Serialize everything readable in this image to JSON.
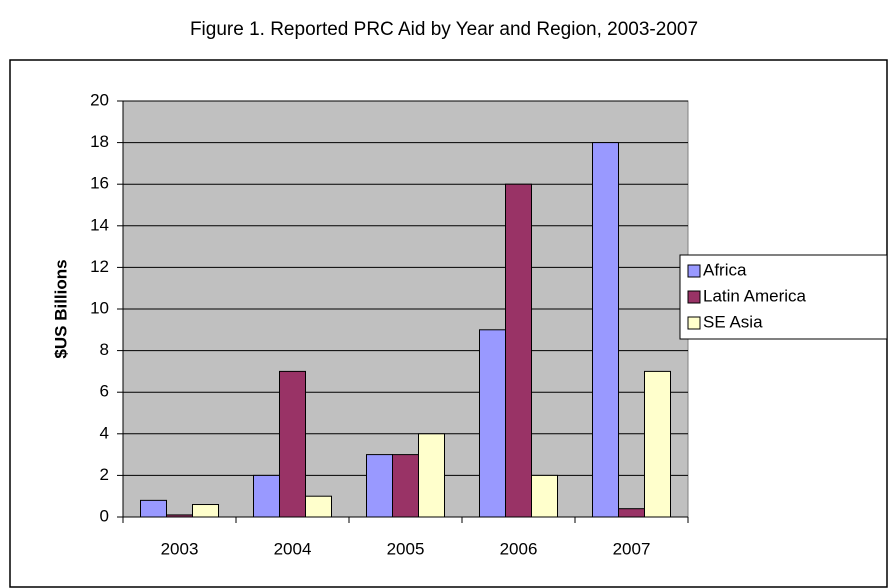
{
  "chart_data": {
    "type": "bar",
    "title": "Figure 1. Reported PRC Aid by Year and Region, 2003-2007",
    "y_label": "$US Billions",
    "categories": [
      "2003",
      "2004",
      "2005",
      "2006",
      "2007"
    ],
    "series": [
      {
        "name": "Africa",
        "color": "#9999ff",
        "values": [
          0.8,
          2,
          3,
          9,
          18
        ]
      },
      {
        "name": "Latin America",
        "color": "#993366",
        "values": [
          0.1,
          7,
          3,
          16,
          0.4
        ]
      },
      {
        "name": "SE Asia",
        "color": "#ffffcc",
        "values": [
          0.6,
          1,
          4,
          2,
          7
        ]
      }
    ],
    "ylim": [
      0,
      20
    ],
    "yticks": [
      0,
      2,
      4,
      6,
      8,
      10,
      12,
      14,
      16,
      18,
      20
    ],
    "grid": true,
    "legend": "right",
    "plot_background": "#c0c0c0"
  }
}
